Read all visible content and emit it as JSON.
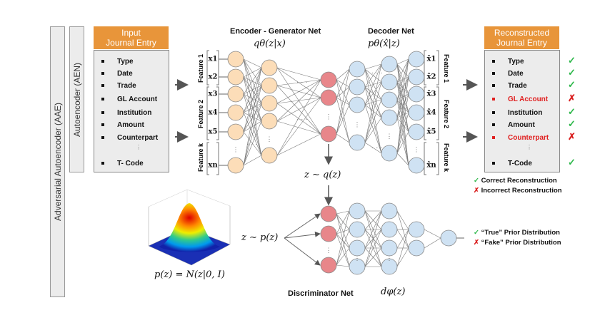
{
  "outer_labels": {
    "aae": "Adversarial Autoencoder (AAE)",
    "aen": "Autoencoder (AEN)"
  },
  "input": {
    "header": [
      "Input",
      "Journal Entry"
    ],
    "items": [
      "Type",
      "Date",
      "Trade",
      "GL Account",
      "Institution",
      "Amount",
      "Counterpart",
      "T- Code"
    ]
  },
  "reconstructed": {
    "header": [
      "Reconstructed",
      "Journal Entry"
    ],
    "items": [
      {
        "label": "Type",
        "status": "correct"
      },
      {
        "label": "Date",
        "status": "correct"
      },
      {
        "label": "Trade",
        "status": "correct"
      },
      {
        "label": "GL Account",
        "status": "incorrect"
      },
      {
        "label": "Institution",
        "status": "correct"
      },
      {
        "label": "Amount",
        "status": "correct"
      },
      {
        "label": "Counterpart",
        "status": "incorrect"
      },
      {
        "label": "T-Code",
        "status": "correct"
      }
    ]
  },
  "features": {
    "labels": [
      "Feature 1",
      "Feature 2",
      "Feature k"
    ],
    "inputs": [
      "x1",
      "x2",
      "x3",
      "x4",
      "x5",
      "xn"
    ],
    "outputs": [
      "x̂1",
      "x̂2",
      "x̂3",
      "x̂4",
      "x̂5",
      "x̂n"
    ]
  },
  "encoder": {
    "title": "Encoder - Generator Net",
    "formula": "qθ(z|x)"
  },
  "decoder": {
    "title": "Decoder Net",
    "formula": "pθ(x̂|z)"
  },
  "latent": {
    "posterior": "z ∼ q(z)",
    "prior": "z ∼ p(z)",
    "prior_def": "p(z) = N(z|0, I)"
  },
  "discriminator": {
    "title": "Discriminator Net",
    "formula": "dφ(z)"
  },
  "legend": {
    "reconstruction": [
      "Correct Reconstruction",
      "Incorrect Reconstruction"
    ],
    "prior": [
      "“True” Prior Distribution",
      "“Fake” Prior Distribution"
    ]
  },
  "symbols": {
    "check": "✓",
    "cross": "✗",
    "dots": "⋮"
  },
  "colors": {
    "header": "#E8953A",
    "encoder_node": "#FCDDB8",
    "latent_node": "#E8868A",
    "decoder_node": "#CFE2F3",
    "correct": "#2eb84b",
    "incorrect": "#d91e1e"
  }
}
